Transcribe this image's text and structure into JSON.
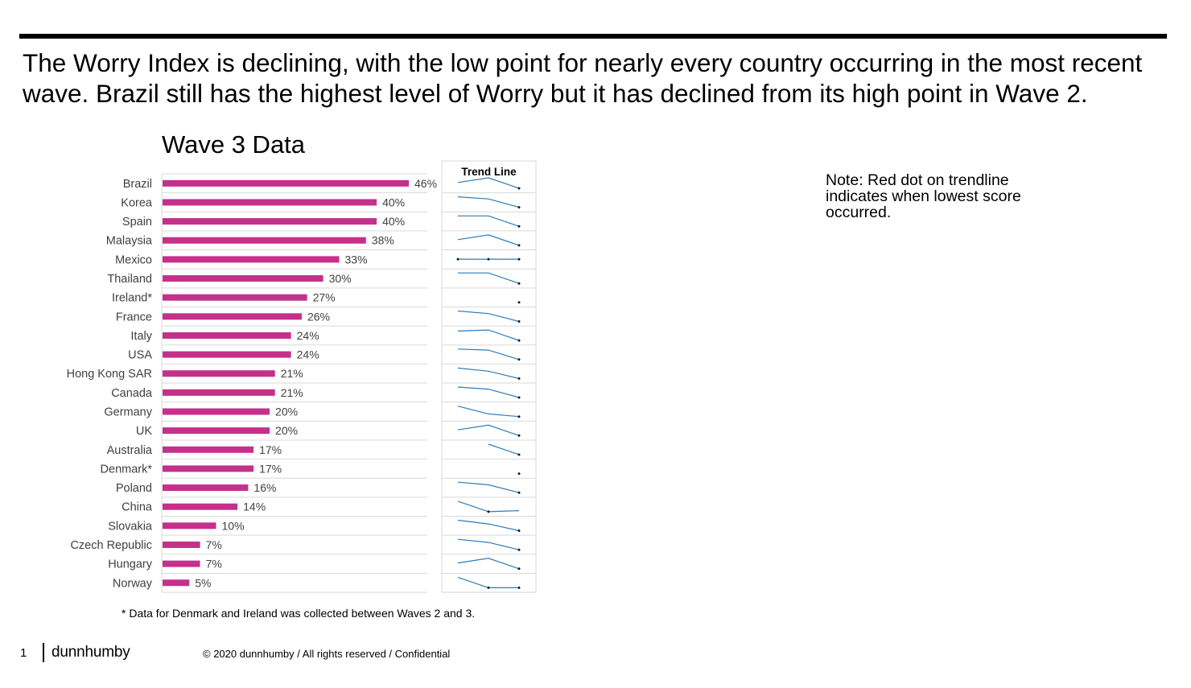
{
  "headline": "The Worry Index is declining, with the low point for nearly every country occurring in the most recent wave.  Brazil still has the highest level of Worry but it has declined from its high point in Wave 2.",
  "note": "Note:  Red dot on trendline indicates when lowest score occurred.",
  "footnote": "* Data for Denmark and Ireland was collected between Waves 2 and 3.",
  "footer": {
    "page_number": "1",
    "brand": "dunnhumby",
    "copyright": "© 2020 dunnhumby / All rights reserved / Confidential"
  },
  "colors": {
    "bar": "#c5308b",
    "trend": "#2e7bb8",
    "grid": "#d9d9d9"
  },
  "chart_data": {
    "type": "bar",
    "orientation": "horizontal",
    "title": "Wave 3 Data",
    "categories": [
      "Brazil",
      "Korea",
      "Spain",
      "Malaysia",
      "Mexico",
      "Thailand",
      "Ireland*",
      "France",
      "Italy",
      "USA",
      "Hong Kong SAR",
      "Canada",
      "Germany",
      "UK",
      "Australia",
      "Denmark*",
      "Poland",
      "China",
      "Slovakia",
      "Czech Republic",
      "Hungary",
      "Norway"
    ],
    "values": [
      46,
      40,
      40,
      38,
      33,
      30,
      27,
      26,
      24,
      24,
      21,
      21,
      20,
      20,
      17,
      17,
      16,
      14,
      10,
      7,
      7,
      5
    ],
    "labels": [
      "46%",
      "40%",
      "40%",
      "38%",
      "33%",
      "30%",
      "27%",
      "26%",
      "24%",
      "24%",
      "21%",
      "21%",
      "20%",
      "20%",
      "17%",
      "17%",
      "16%",
      "14%",
      "10%",
      "7%",
      "7%",
      "5%"
    ],
    "trend_header": "Trend Line",
    "trend_lines": [
      [
        0.55,
        1.0,
        0.0
      ],
      [
        1.0,
        0.8,
        0.0
      ],
      [
        1.0,
        1.0,
        0.0
      ],
      [
        0.55,
        1.0,
        0.0
      ],
      [
        0.5,
        0.5,
        0.5
      ],
      [
        1.0,
        1.0,
        0.0
      ],
      [
        null,
        null,
        0.0
      ],
      [
        1.0,
        0.75,
        0.0
      ],
      [
        0.9,
        1.0,
        0.0
      ],
      [
        1.0,
        0.9,
        0.0
      ],
      [
        1.0,
        0.7,
        0.0
      ],
      [
        1.0,
        0.8,
        0.0
      ],
      [
        1.0,
        0.25,
        0.0
      ],
      [
        0.55,
        1.0,
        0.0
      ],
      [
        null,
        1.0,
        0.0
      ],
      [
        null,
        null,
        0.0
      ],
      [
        1.0,
        0.75,
        0.0
      ],
      [
        1.0,
        0.0,
        0.1
      ],
      [
        1.0,
        0.65,
        0.0
      ],
      [
        1.0,
        0.7,
        0.0
      ],
      [
        0.55,
        1.0,
        0.0
      ],
      [
        1.0,
        0.0,
        0.0
      ]
    ]
  }
}
